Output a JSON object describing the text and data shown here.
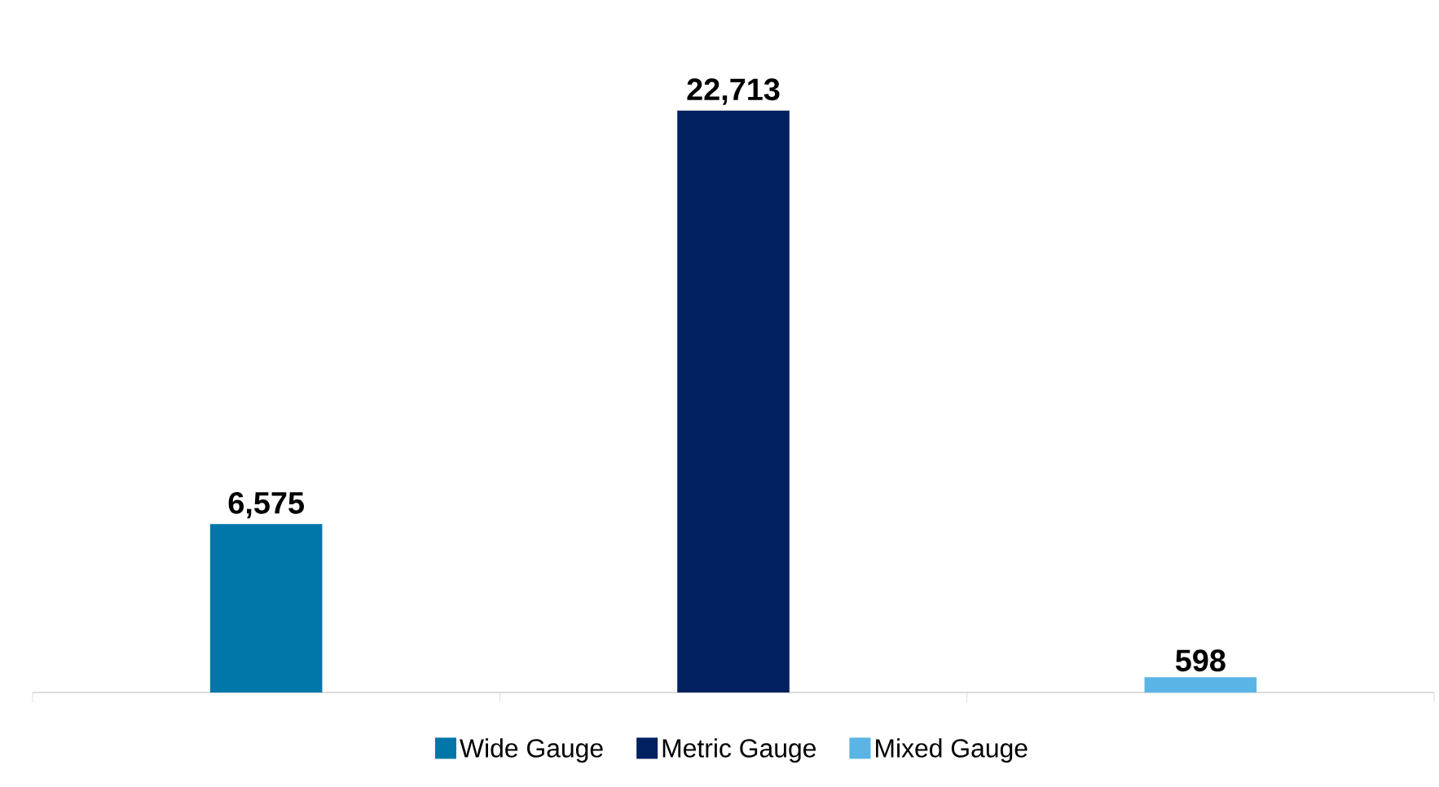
{
  "chart_data": {
    "type": "bar",
    "categories": [
      null,
      null,
      null
    ],
    "stacked": true,
    "series": [
      {
        "name": "Wide Gauge",
        "color": "#0077a8",
        "values": [
          6575,
          null,
          null
        ],
        "value_labels": [
          "6,575",
          null,
          null
        ]
      },
      {
        "name": "Metric Gauge",
        "color": "#002060",
        "values": [
          null,
          22713,
          null
        ],
        "value_labels": [
          null,
          "22,713",
          null
        ]
      },
      {
        "name": "Mixed Gauge",
        "color": "#5ab4e5",
        "values": [
          null,
          null,
          598
        ],
        "value_labels": [
          null,
          null,
          "598"
        ]
      }
    ],
    "legend": "bottom"
  }
}
